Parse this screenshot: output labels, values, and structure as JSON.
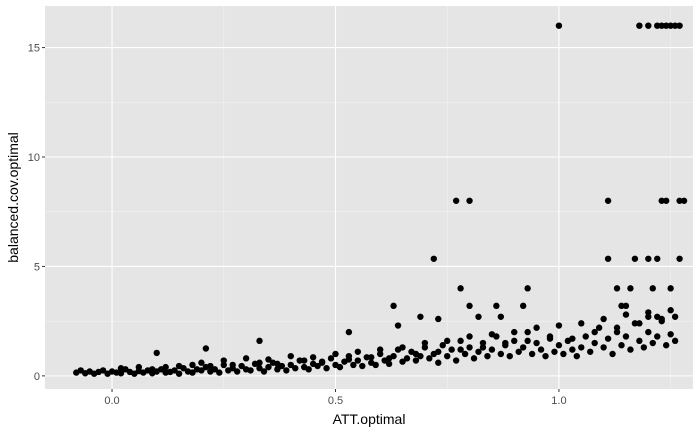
{
  "chart_data": {
    "type": "scatter",
    "xlabel": "ATT.optimal",
    "ylabel": "balanced.cov.optimal",
    "xlim": [
      -0.15,
      1.3
    ],
    "ylim": [
      -0.6,
      16.9
    ],
    "x_ticks": [
      {
        "value": 0.0,
        "label": "0.0"
      },
      {
        "value": 0.5,
        "label": "0.5"
      },
      {
        "value": 1.0,
        "label": "1.0"
      }
    ],
    "y_ticks": [
      {
        "value": 0,
        "label": "0"
      },
      {
        "value": 5,
        "label": "5"
      },
      {
        "value": 10,
        "label": "10"
      },
      {
        "value": 15,
        "label": "15"
      }
    ],
    "grid": true,
    "colors": {
      "panel": "#e5e5e5",
      "grid_major": "#ffffff",
      "points": "#000000"
    },
    "points": [
      [
        -0.08,
        0.15
      ],
      [
        -0.06,
        0.12
      ],
      [
        -0.05,
        0.2
      ],
      [
        -0.04,
        0.1
      ],
      [
        -0.03,
        0.18
      ],
      [
        -0.02,
        0.25
      ],
      [
        -0.01,
        0.1
      ],
      [
        0.0,
        0.2
      ],
      [
        0.01,
        0.15
      ],
      [
        0.02,
        0.12
      ],
      [
        0.03,
        0.3
      ],
      [
        0.04,
        0.18
      ],
      [
        0.05,
        0.1
      ],
      [
        0.06,
        0.22
      ],
      [
        0.07,
        0.15
      ],
      [
        0.08,
        0.25
      ],
      [
        0.09,
        0.12
      ],
      [
        0.1,
        0.2
      ],
      [
        0.11,
        0.3
      ],
      [
        0.12,
        0.15
      ],
      [
        0.13,
        0.18
      ],
      [
        0.14,
        0.25
      ],
      [
        0.15,
        0.1
      ],
      [
        0.16,
        0.35
      ],
      [
        0.17,
        0.2
      ],
      [
        0.18,
        0.15
      ],
      [
        0.19,
        0.3
      ],
      [
        0.2,
        0.25
      ],
      [
        0.21,
        0.4
      ],
      [
        0.22,
        0.2
      ],
      [
        0.23,
        0.3
      ],
      [
        0.24,
        0.15
      ],
      [
        0.25,
        0.5
      ],
      [
        0.26,
        0.25
      ],
      [
        0.27,
        0.35
      ],
      [
        0.28,
        0.2
      ],
      [
        0.29,
        0.45
      ],
      [
        0.3,
        0.3
      ],
      [
        0.31,
        0.25
      ],
      [
        0.32,
        0.55
      ],
      [
        0.33,
        0.35
      ],
      [
        0.34,
        0.2
      ],
      [
        0.35,
        0.4
      ],
      [
        0.36,
        0.6
      ],
      [
        0.37,
        0.3
      ],
      [
        0.38,
        0.45
      ],
      [
        0.39,
        0.25
      ],
      [
        0.4,
        0.5
      ],
      [
        0.41,
        0.35
      ],
      [
        0.42,
        0.7
      ],
      [
        0.43,
        0.4
      ],
      [
        0.44,
        0.3
      ],
      [
        0.45,
        0.55
      ],
      [
        0.46,
        0.45
      ],
      [
        0.47,
        0.6
      ],
      [
        0.48,
        0.35
      ],
      [
        0.49,
        0.8
      ],
      [
        0.5,
        0.5
      ],
      [
        0.51,
        0.4
      ],
      [
        0.52,
        0.65
      ],
      [
        0.53,
        0.9
      ],
      [
        0.54,
        0.5
      ],
      [
        0.55,
        0.7
      ],
      [
        0.56,
        0.45
      ],
      [
        0.57,
        0.85
      ],
      [
        0.58,
        0.6
      ],
      [
        0.59,
        0.5
      ],
      [
        0.6,
        1.0
      ],
      [
        0.61,
        0.7
      ],
      [
        0.62,
        0.55
      ],
      [
        0.63,
        0.9
      ],
      [
        0.64,
        1.2
      ],
      [
        0.65,
        0.65
      ],
      [
        0.66,
        0.8
      ],
      [
        0.67,
        1.1
      ],
      [
        0.68,
        0.7
      ],
      [
        0.69,
        0.9
      ],
      [
        0.7,
        1.3
      ],
      [
        0.71,
        0.8
      ],
      [
        0.72,
        1.0
      ],
      [
        0.73,
        0.6
      ],
      [
        0.74,
        1.4
      ],
      [
        0.75,
        0.9
      ],
      [
        0.76,
        1.2
      ],
      [
        0.77,
        0.7
      ],
      [
        0.78,
        1.6
      ],
      [
        0.79,
        1.0
      ],
      [
        0.8,
        1.3
      ],
      [
        0.81,
        0.8
      ],
      [
        0.82,
        1.1
      ],
      [
        0.83,
        1.5
      ],
      [
        0.84,
        0.9
      ],
      [
        0.85,
        1.2
      ],
      [
        0.86,
        1.8
      ],
      [
        0.87,
        1.0
      ],
      [
        0.88,
        1.4
      ],
      [
        0.89,
        0.9
      ],
      [
        0.9,
        1.6
      ],
      [
        0.91,
        1.1
      ],
      [
        0.92,
        1.3
      ],
      [
        0.93,
        2.0
      ],
      [
        0.94,
        1.0
      ],
      [
        0.95,
        1.5
      ],
      [
        0.96,
        1.2
      ],
      [
        0.97,
        0.9
      ],
      [
        0.98,
        1.7
      ],
      [
        0.99,
        1.1
      ],
      [
        1.0,
        1.4
      ],
      [
        1.01,
        1.0
      ],
      [
        1.02,
        1.6
      ],
      [
        1.03,
        1.2
      ],
      [
        1.04,
        0.9
      ],
      [
        1.05,
        1.3
      ],
      [
        1.06,
        1.8
      ],
      [
        1.07,
        1.1
      ],
      [
        1.08,
        1.5
      ],
      [
        1.09,
        2.2
      ],
      [
        1.1,
        1.3
      ],
      [
        1.11,
        1.7
      ],
      [
        1.12,
        1.0
      ],
      [
        1.13,
        2.0
      ],
      [
        1.14,
        1.4
      ],
      [
        1.15,
        1.8
      ],
      [
        1.16,
        1.2
      ],
      [
        1.17,
        2.4
      ],
      [
        1.18,
        1.6
      ],
      [
        1.19,
        1.3
      ],
      [
        1.2,
        2.0
      ],
      [
        1.21,
        1.5
      ],
      [
        1.22,
        1.8
      ],
      [
        1.23,
        2.6
      ],
      [
        1.24,
        1.4
      ],
      [
        1.25,
        1.9
      ],
      [
        1.26,
        1.6
      ],
      [
        -0.07,
        0.25
      ],
      [
        0.02,
        0.35
      ],
      [
        0.06,
        0.4
      ],
      [
        0.09,
        0.3
      ],
      [
        0.12,
        0.4
      ],
      [
        0.15,
        0.45
      ],
      [
        0.18,
        0.5
      ],
      [
        0.2,
        0.6
      ],
      [
        0.22,
        0.45
      ],
      [
        0.25,
        0.7
      ],
      [
        0.27,
        0.5
      ],
      [
        0.3,
        0.8
      ],
      [
        0.33,
        0.6
      ],
      [
        0.35,
        0.75
      ],
      [
        0.37,
        0.55
      ],
      [
        0.4,
        0.9
      ],
      [
        0.43,
        0.7
      ],
      [
        0.45,
        0.85
      ],
      [
        0.47,
        0.65
      ],
      [
        0.5,
        1.0
      ],
      [
        0.53,
        0.75
      ],
      [
        0.55,
        1.1
      ],
      [
        0.58,
        0.85
      ],
      [
        0.6,
        1.2
      ],
      [
        0.62,
        0.8
      ],
      [
        0.65,
        1.3
      ],
      [
        0.68,
        1.0
      ],
      [
        0.7,
        1.5
      ],
      [
        0.73,
        1.1
      ],
      [
        0.75,
        1.6
      ],
      [
        0.78,
        1.2
      ],
      [
        0.8,
        1.8
      ],
      [
        0.83,
        1.3
      ],
      [
        0.85,
        1.9
      ],
      [
        0.88,
        1.5
      ],
      [
        0.9,
        2.0
      ],
      [
        0.93,
        1.6
      ],
      [
        0.95,
        2.2
      ],
      [
        0.98,
        1.8
      ],
      [
        1.0,
        2.3
      ],
      [
        1.03,
        1.7
      ],
      [
        1.05,
        2.4
      ],
      [
        1.08,
        2.0
      ],
      [
        1.1,
        2.6
      ],
      [
        1.13,
        2.2
      ],
      [
        1.15,
        2.8
      ],
      [
        1.18,
        2.4
      ],
      [
        1.2,
        2.9
      ],
      [
        1.23,
        2.5
      ],
      [
        1.25,
        3.0
      ],
      [
        0.1,
        1.05
      ],
      [
        0.21,
        1.25
      ],
      [
        0.33,
        1.6
      ],
      [
        0.53,
        2.0
      ],
      [
        0.63,
        3.2
      ],
      [
        0.64,
        2.3
      ],
      [
        0.69,
        2.7
      ],
      [
        0.72,
        5.35
      ],
      [
        0.73,
        2.6
      ],
      [
        0.77,
        8.0
      ],
      [
        0.8,
        8.0
      ],
      [
        0.78,
        4.0
      ],
      [
        0.8,
        3.2
      ],
      [
        0.82,
        2.7
      ],
      [
        0.86,
        3.2
      ],
      [
        0.87,
        2.7
      ],
      [
        0.92,
        3.2
      ],
      [
        0.93,
        4.0
      ],
      [
        1.0,
        16.0
      ],
      [
        1.11,
        8.0
      ],
      [
        1.11,
        5.35
      ],
      [
        1.13,
        4.0
      ],
      [
        1.14,
        3.2
      ],
      [
        1.15,
        3.2
      ],
      [
        1.16,
        4.0
      ],
      [
        1.17,
        5.35
      ],
      [
        1.2,
        5.35
      ],
      [
        1.2,
        2.7
      ],
      [
        1.21,
        4.0
      ],
      [
        1.22,
        5.35
      ],
      [
        1.22,
        2.7
      ],
      [
        1.23,
        8.0
      ],
      [
        1.24,
        8.0
      ],
      [
        1.25,
        4.0
      ],
      [
        1.26,
        2.7
      ],
      [
        1.27,
        5.35
      ],
      [
        1.27,
        8.0
      ],
      [
        1.28,
        8.0
      ],
      [
        1.18,
        16.0
      ],
      [
        1.2,
        16.0
      ],
      [
        1.22,
        16.0
      ],
      [
        1.23,
        16.0
      ],
      [
        1.24,
        16.0
      ],
      [
        1.25,
        16.0
      ],
      [
        1.26,
        16.0
      ],
      [
        1.27,
        16.0
      ]
    ]
  }
}
